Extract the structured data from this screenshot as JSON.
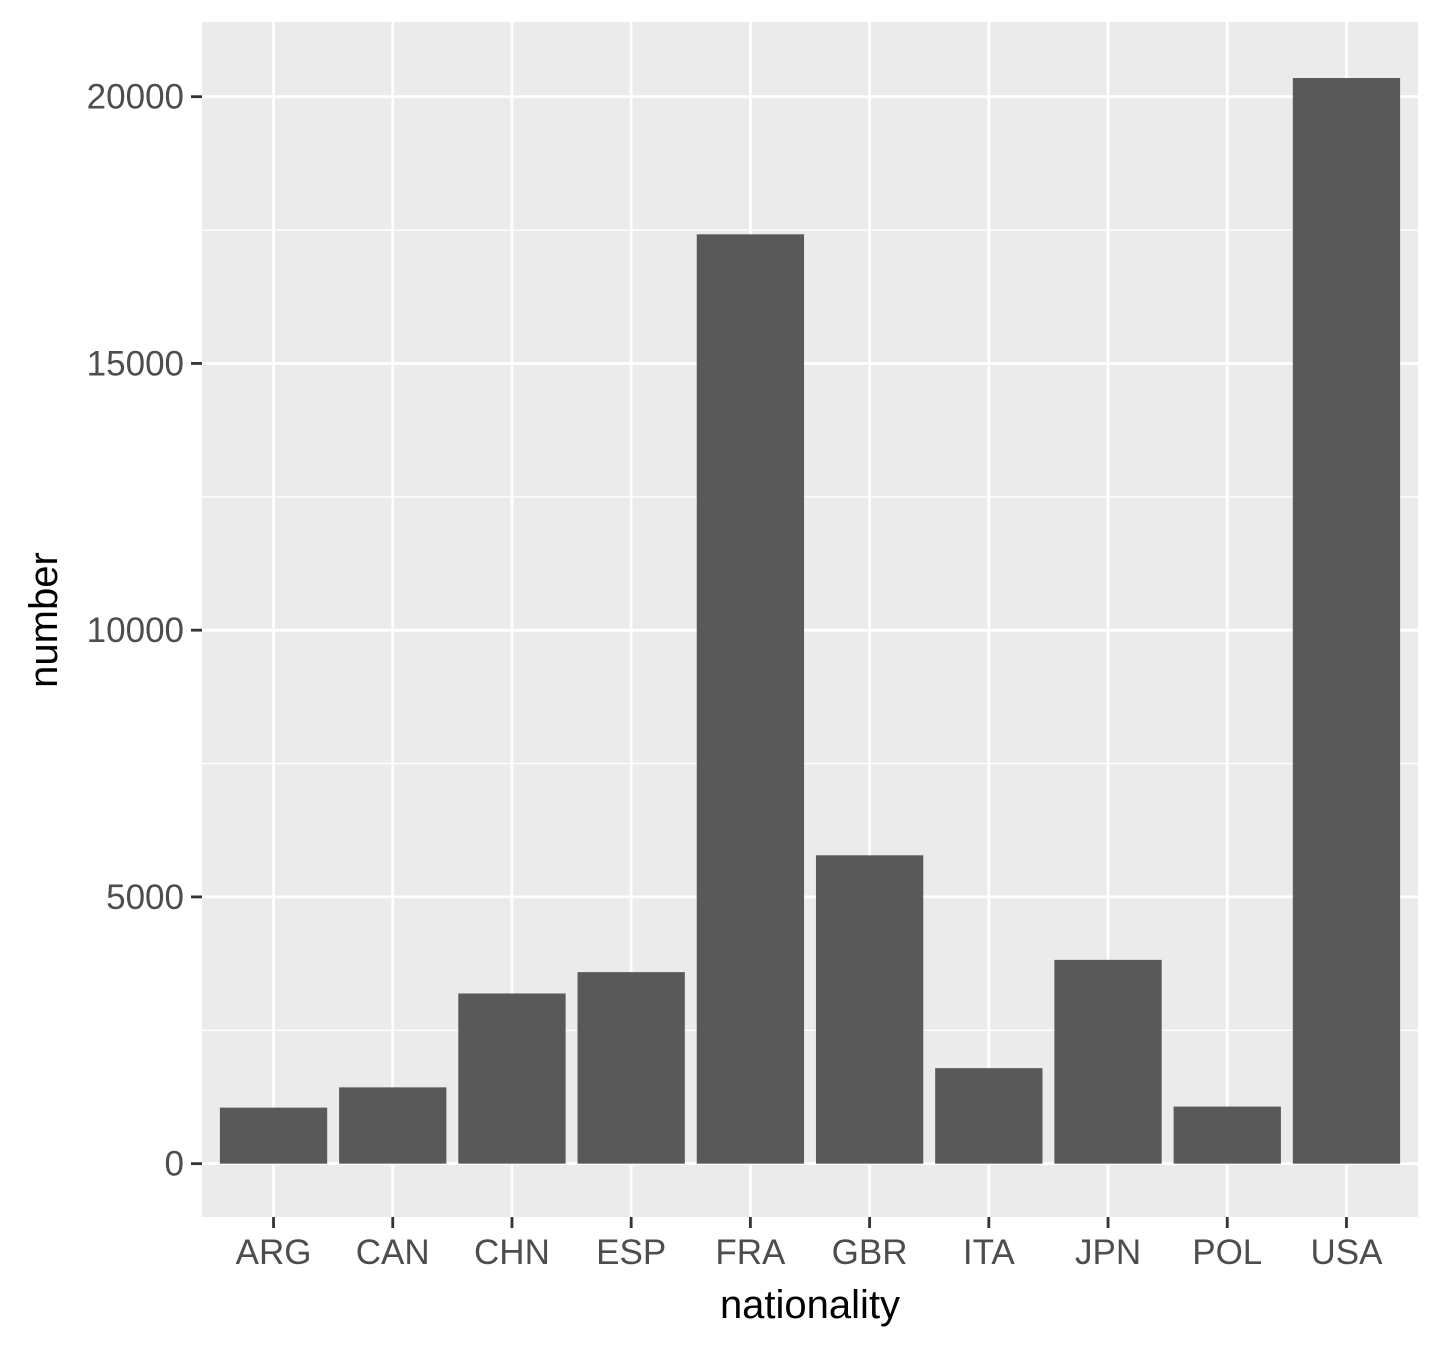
{
  "chart_data": {
    "type": "bar",
    "title": "",
    "xlabel": "nationality",
    "ylabel": "number",
    "categories": [
      "ARG",
      "CAN",
      "CHN",
      "ESP",
      "FRA",
      "GBR",
      "ITA",
      "JPN",
      "POL",
      "USA"
    ],
    "values": [
      1050,
      1430,
      3190,
      3590,
      17420,
      5780,
      1790,
      3820,
      1070,
      20350
    ],
    "ylim": [
      -1000,
      21400
    ],
    "yticks": [
      0,
      5000,
      10000,
      15000,
      20000
    ],
    "ytick_labels": [
      "0",
      "5000",
      "10000",
      "15000",
      "20000"
    ],
    "yminor": [
      2500,
      7500,
      12500,
      17500
    ],
    "grid": true,
    "legend": "none",
    "colors": {
      "panel": "#ebebeb",
      "grid": "#ffffff",
      "bar": "#595959",
      "tick": "#333333",
      "tick_text": "#4d4d4d",
      "title_text": "#000000"
    }
  }
}
